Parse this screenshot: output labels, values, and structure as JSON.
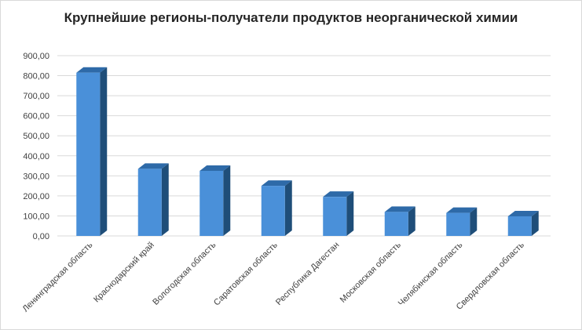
{
  "chart_data": {
    "type": "bar",
    "title": "Крупнейшие регионы-получатели продуктов неорганической химии",
    "xlabel": "",
    "ylabel": "",
    "categories": [
      "Ленинградская область",
      "Краснодарский край",
      "Вологодская область",
      "Саратовская область",
      "Республика Дагестан",
      "Московская область",
      "Челябинская область",
      "Свердловская область"
    ],
    "values": [
      815,
      335,
      325,
      250,
      195,
      120,
      115,
      98
    ],
    "ylim": [
      0,
      900
    ],
    "yticks": [
      "0,00",
      "100,00",
      "200,00",
      "300,00",
      "400,00",
      "500,00",
      "600,00",
      "700,00",
      "800,00",
      "900,00"
    ],
    "grid": true,
    "legend": "none",
    "colors": {
      "front": "#4a90d9",
      "side": "#1f4e79",
      "top": "#2e6aa8",
      "grid": "#d9d9d9"
    }
  }
}
